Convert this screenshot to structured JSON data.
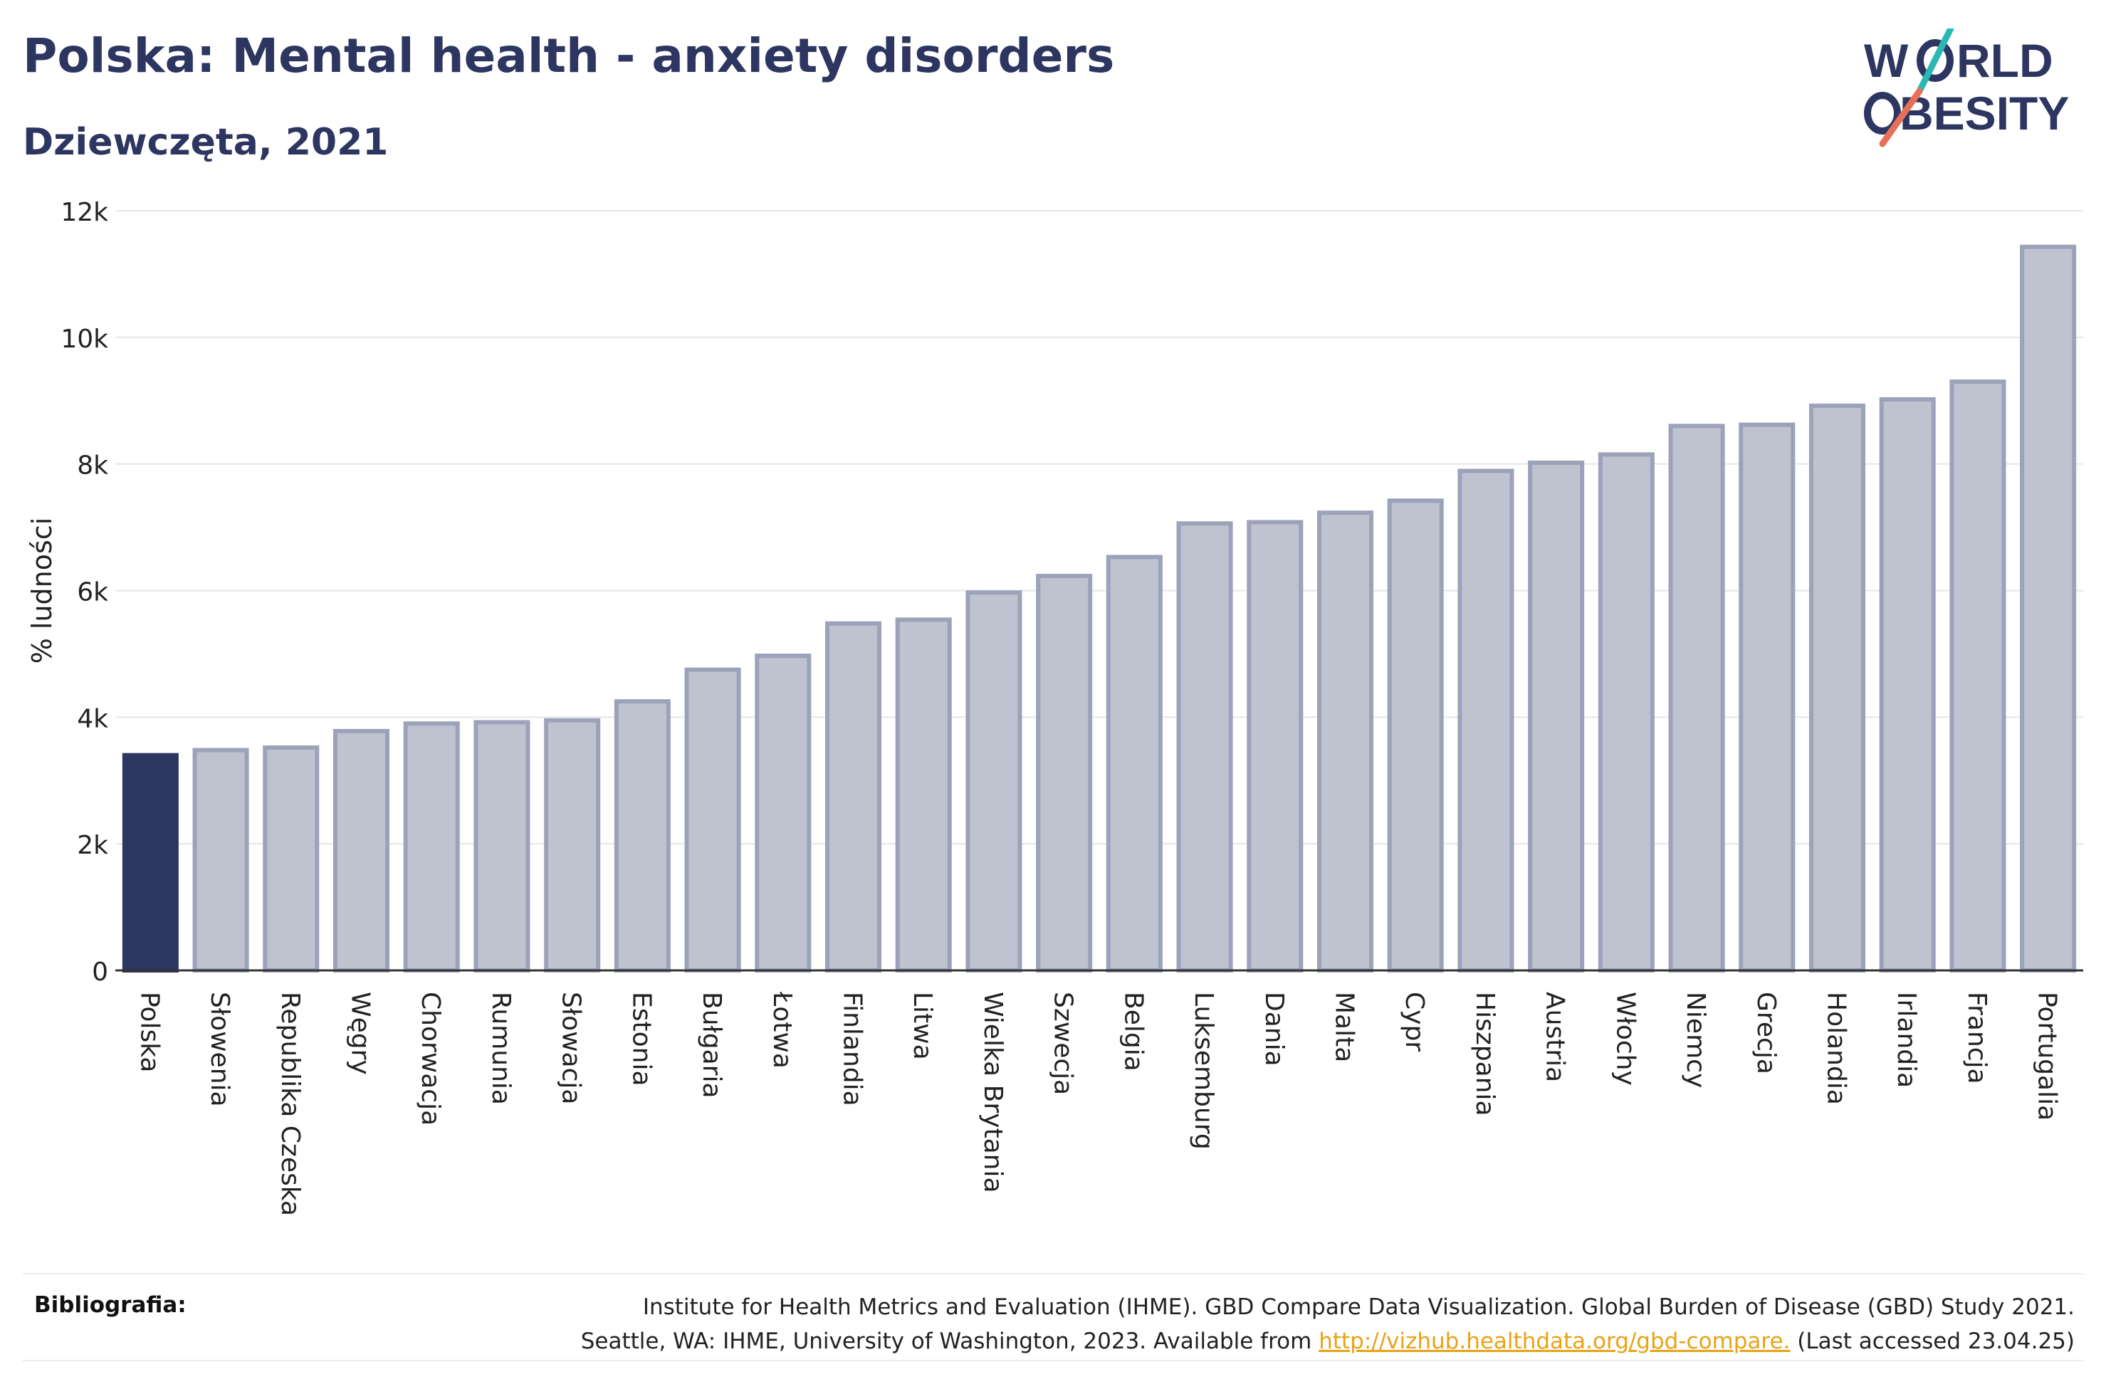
{
  "header": {
    "title": "Polska: Mental health - anxiety disorders",
    "subtitle": "Dziewczęta, 2021"
  },
  "logo": {
    "line1": "W RLD",
    "line2": "BESITY",
    "text": "WORLD OBESITY"
  },
  "colors": {
    "highlight": "#2d3660",
    "bar": "#bfc3d0",
    "bar_stroke": "#9ba2ba",
    "grid": "#e6e6e6",
    "accent_teal": "#2bb8b3",
    "accent_coral": "#e8705b"
  },
  "chart_data": {
    "type": "bar",
    "ylabel": "% ludności",
    "ylim": [
      0,
      12000
    ],
    "yticks": [
      0,
      2000,
      4000,
      6000,
      8000,
      10000,
      12000
    ],
    "ytick_labels": [
      "0",
      "2k",
      "4k",
      "6k",
      "8k",
      "10k",
      "12k"
    ],
    "highlight": "Polska",
    "categories": [
      "Polska",
      "Słowenia",
      "Republika Czeska",
      "Węgry",
      "Chorwacja",
      "Rumunia",
      "Słowacja",
      "Estonia",
      "Bułgaria",
      "Łotwa",
      "Finlandia",
      "Litwa",
      "Wielka Brytania",
      "Szwecja",
      "Belgia",
      "Luksemburg",
      "Dania",
      "Malta",
      "Cypr",
      "Hiszpania",
      "Austria",
      "Włochy",
      "Niemcy",
      "Grecja",
      "Holandia",
      "Irlandia",
      "Francja",
      "Portugalia"
    ],
    "values": [
      3400,
      3480,
      3520,
      3780,
      3900,
      3920,
      3950,
      4250,
      4750,
      4970,
      5480,
      5540,
      5970,
      6230,
      6530,
      7060,
      7080,
      7230,
      7420,
      7890,
      8020,
      8150,
      8600,
      8620,
      8920,
      9020,
      9300,
      11430
    ]
  },
  "bibliography": {
    "label": "Bibliografia:",
    "line1": "Institute for Health Metrics and Evaluation (IHME). GBD Compare Data Visualization. Global Burden of Disease (GBD) Study 2021.",
    "line2_pre": "Seattle, WA: IHME, University of Washington, 2023. Available from ",
    "link": "http://vizhub.healthdata.org/gbd-compare.",
    "line2_post": " (Last accessed 23.04.25)"
  }
}
